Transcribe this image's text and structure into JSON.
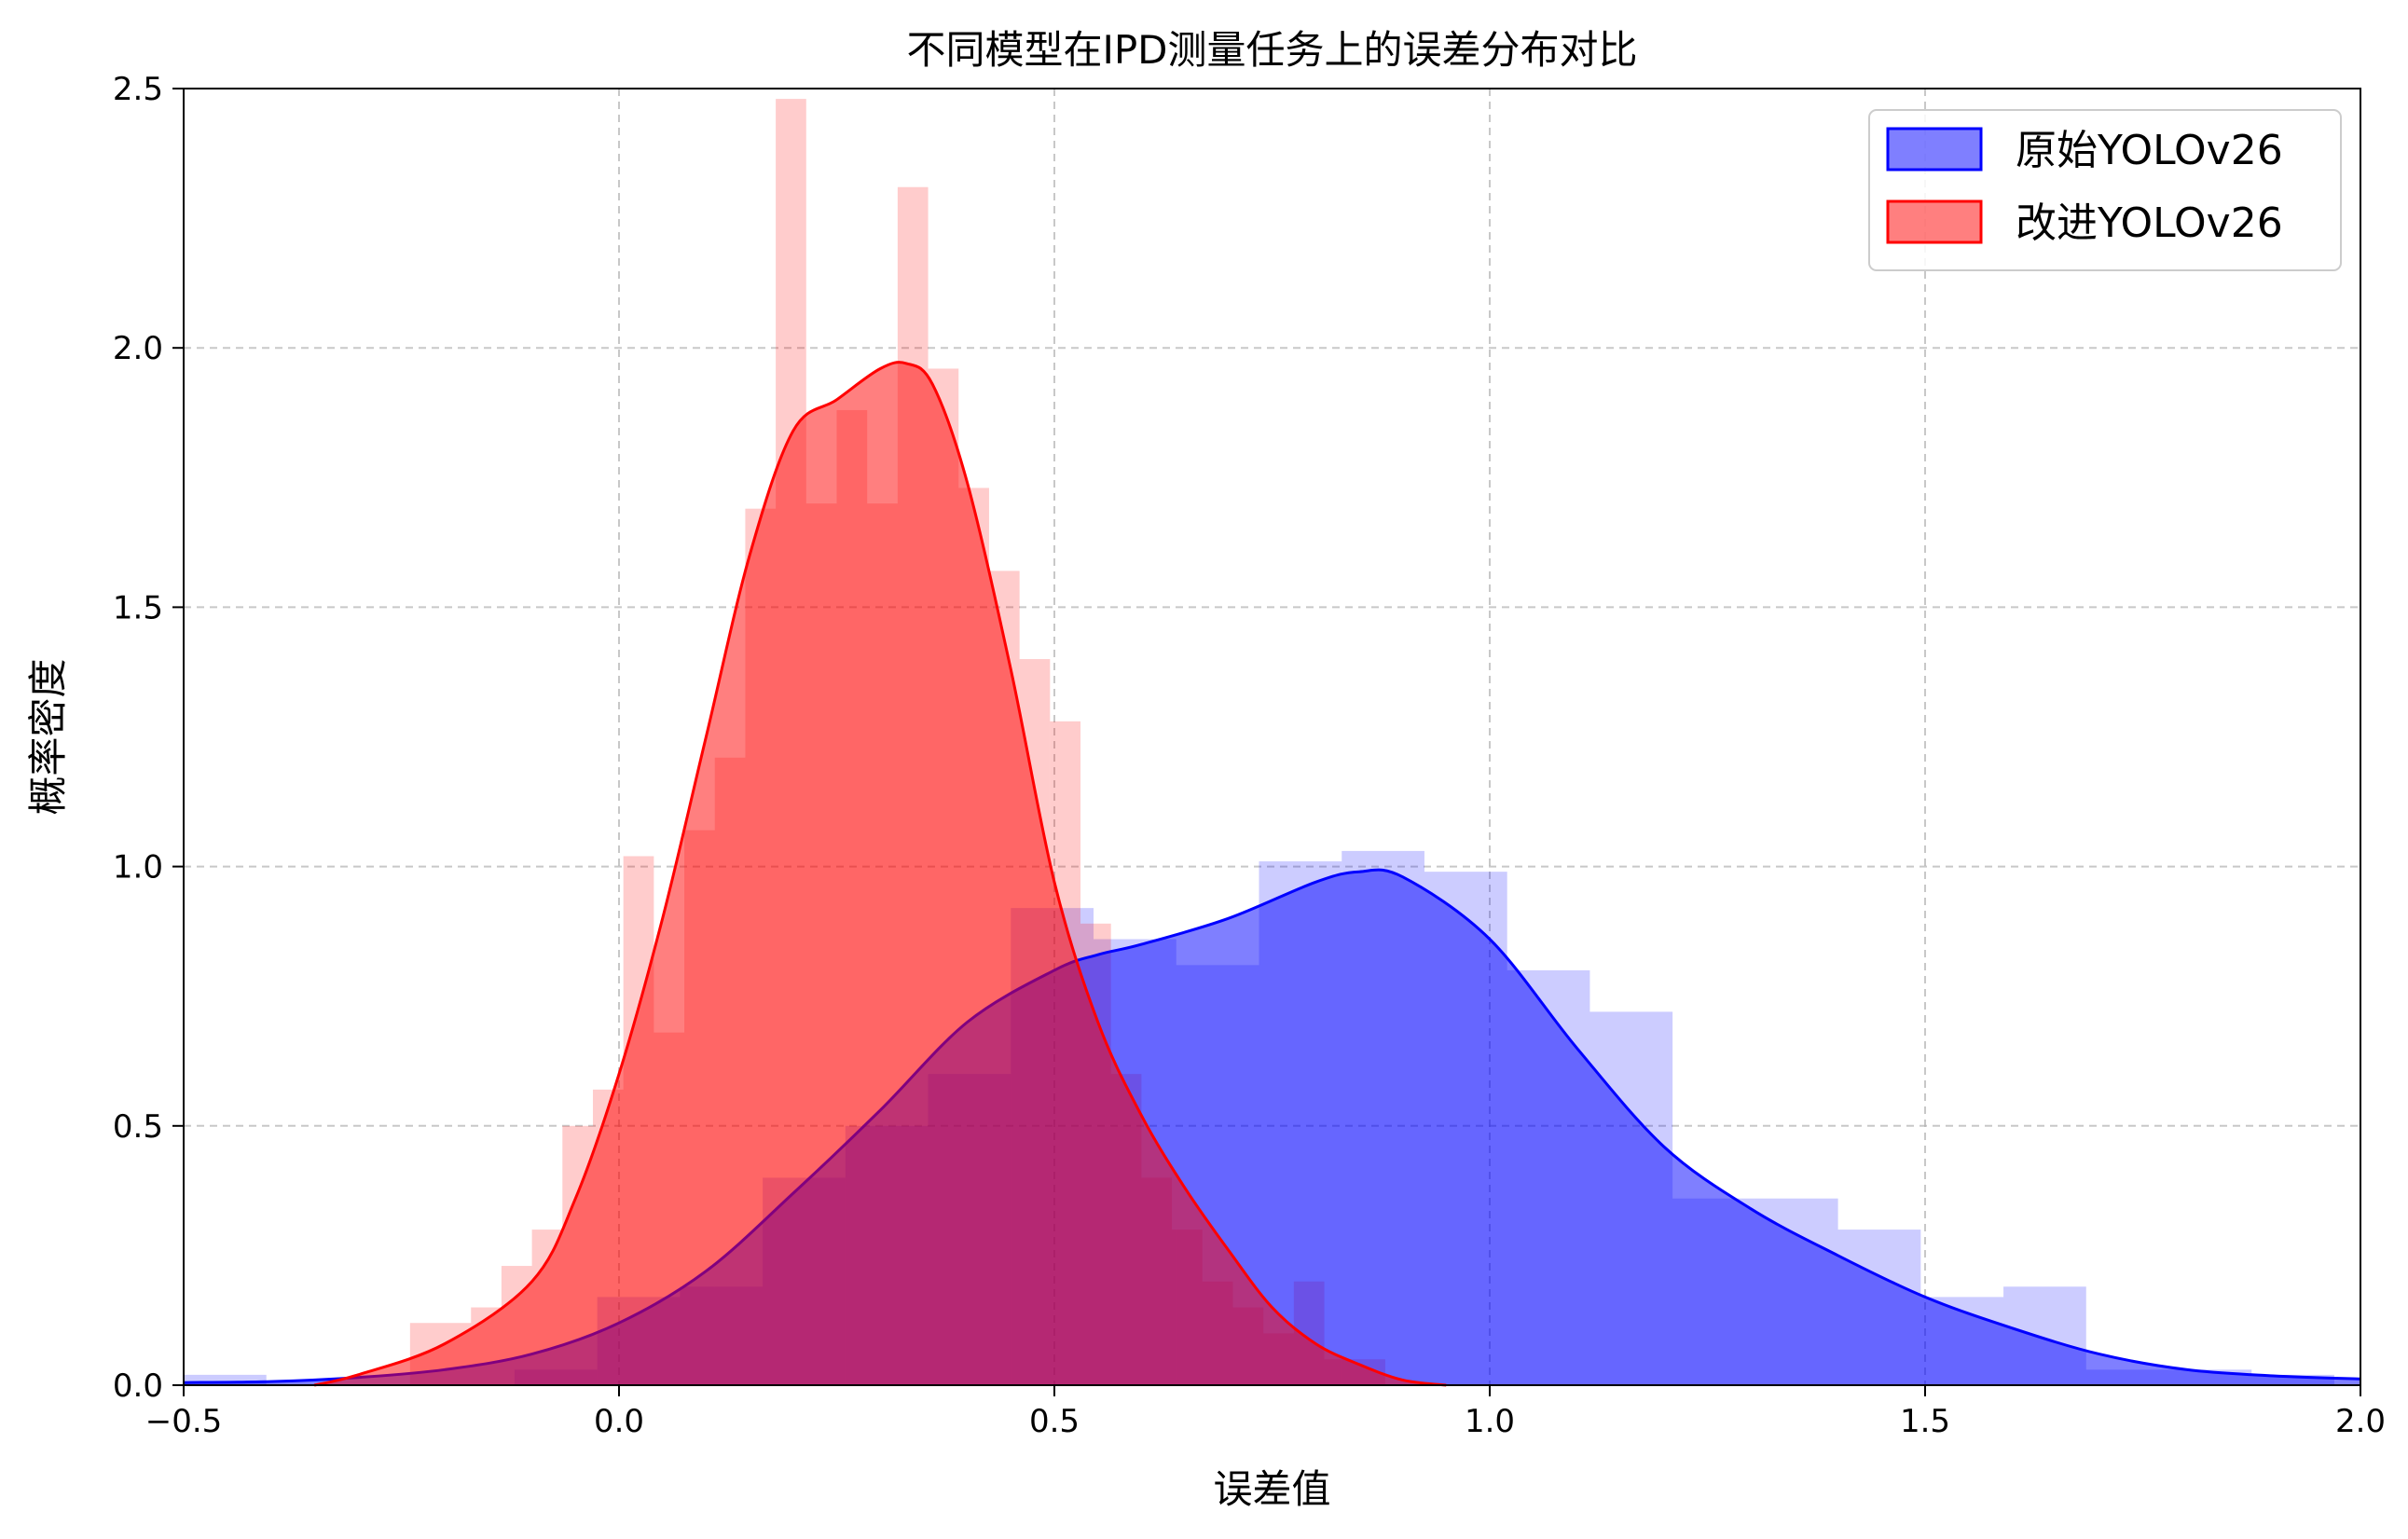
{
  "chart_data": {
    "type": "histogram-kde",
    "title": "不同模型在IPD测量任务上的误差分布对比",
    "xlabel": "误差值",
    "ylabel": "概率密度",
    "xlim": [
      -0.5,
      2.0
    ],
    "ylim": [
      0,
      2.5
    ],
    "xticks": [
      -0.5,
      0.0,
      0.5,
      1.0,
      1.5,
      2.0
    ],
    "xtick_labels": [
      "−0.5",
      "0.0",
      "0.5",
      "1.0",
      "1.5",
      "2.0"
    ],
    "yticks": [
      0.0,
      0.5,
      1.0,
      1.5,
      2.0,
      2.5
    ],
    "ytick_labels": [
      "0.0",
      "0.5",
      "1.0",
      "1.5",
      "2.0",
      "2.5"
    ],
    "grid": true,
    "legend_position": "top-right",
    "series": [
      {
        "name": "原始YOLOv26",
        "color": "#0000ff",
        "histogram": {
          "bin_edges": [
            -0.5,
            -0.405,
            -0.31,
            -0.215,
            -0.12,
            -0.025,
            0.07,
            0.165,
            0.26,
            0.355,
            0.45,
            0.545,
            0.64,
            0.735,
            0.83,
            0.925,
            1.02,
            1.115,
            1.21,
            1.305,
            1.4,
            1.495,
            1.59,
            1.685,
            1.78,
            1.875,
            1.97
          ],
          "densities": [
            0.02,
            0.0,
            0.0,
            0.0,
            0.03,
            0.17,
            0.19,
            0.4,
            0.5,
            0.6,
            0.92,
            0.86,
            0.81,
            1.01,
            1.03,
            0.99,
            0.8,
            0.72,
            0.36,
            0.36,
            0.3,
            0.17,
            0.19,
            0.03,
            0.03,
            0.02
          ]
        },
        "kde": {
          "x": [
            -0.5,
            -0.4,
            -0.3,
            -0.2,
            -0.1,
            0.0,
            0.1,
            0.2,
            0.3,
            0.4,
            0.5,
            0.55,
            0.6,
            0.7,
            0.8,
            0.85,
            0.9,
            1.0,
            1.1,
            1.2,
            1.3,
            1.4,
            1.5,
            1.6,
            1.7,
            1.8,
            1.9,
            2.0
          ],
          "y": [
            0.005,
            0.007,
            0.015,
            0.03,
            0.06,
            0.12,
            0.22,
            0.37,
            0.53,
            0.7,
            0.8,
            0.83,
            0.85,
            0.9,
            0.97,
            0.99,
            0.98,
            0.86,
            0.65,
            0.46,
            0.34,
            0.25,
            0.17,
            0.11,
            0.06,
            0.03,
            0.018,
            0.012
          ]
        }
      },
      {
        "name": "改进YOLOv26",
        "color": "#ff0000",
        "histogram": {
          "bin_edges": [
            -0.24,
            -0.205,
            -0.17,
            -0.135,
            -0.1,
            -0.065,
            -0.03,
            0.005,
            0.04,
            0.075,
            0.11,
            0.145,
            0.18,
            0.215,
            0.25,
            0.285,
            0.32,
            0.355,
            0.39,
            0.425,
            0.46,
            0.495,
            0.53,
            0.565,
            0.6,
            0.635,
            0.67,
            0.705,
            0.74,
            0.775,
            0.81,
            0.845,
            0.88
          ],
          "densities": [
            0.12,
            0.12,
            0.15,
            0.23,
            0.3,
            0.5,
            0.57,
            1.02,
            0.68,
            1.07,
            1.21,
            1.69,
            2.48,
            1.7,
            1.88,
            1.7,
            2.31,
            1.96,
            1.73,
            1.57,
            1.4,
            1.28,
            0.89,
            0.6,
            0.4,
            0.3,
            0.2,
            0.15,
            0.1,
            0.2,
            0.05,
            0.05
          ]
        },
        "kde": {
          "x": [
            -0.35,
            -0.3,
            -0.2,
            -0.1,
            -0.05,
            0.0,
            0.05,
            0.1,
            0.15,
            0.2,
            0.25,
            0.3,
            0.33,
            0.36,
            0.4,
            0.45,
            0.5,
            0.55,
            0.6,
            0.65,
            0.7,
            0.75,
            0.8,
            0.85,
            0.9,
            0.95
          ],
          "y": [
            0.0,
            0.02,
            0.08,
            0.2,
            0.36,
            0.6,
            0.9,
            1.25,
            1.6,
            1.84,
            1.9,
            1.96,
            1.97,
            1.93,
            1.74,
            1.38,
            0.97,
            0.7,
            0.52,
            0.38,
            0.26,
            0.15,
            0.08,
            0.04,
            0.01,
            0.0
          ]
        }
      }
    ]
  }
}
